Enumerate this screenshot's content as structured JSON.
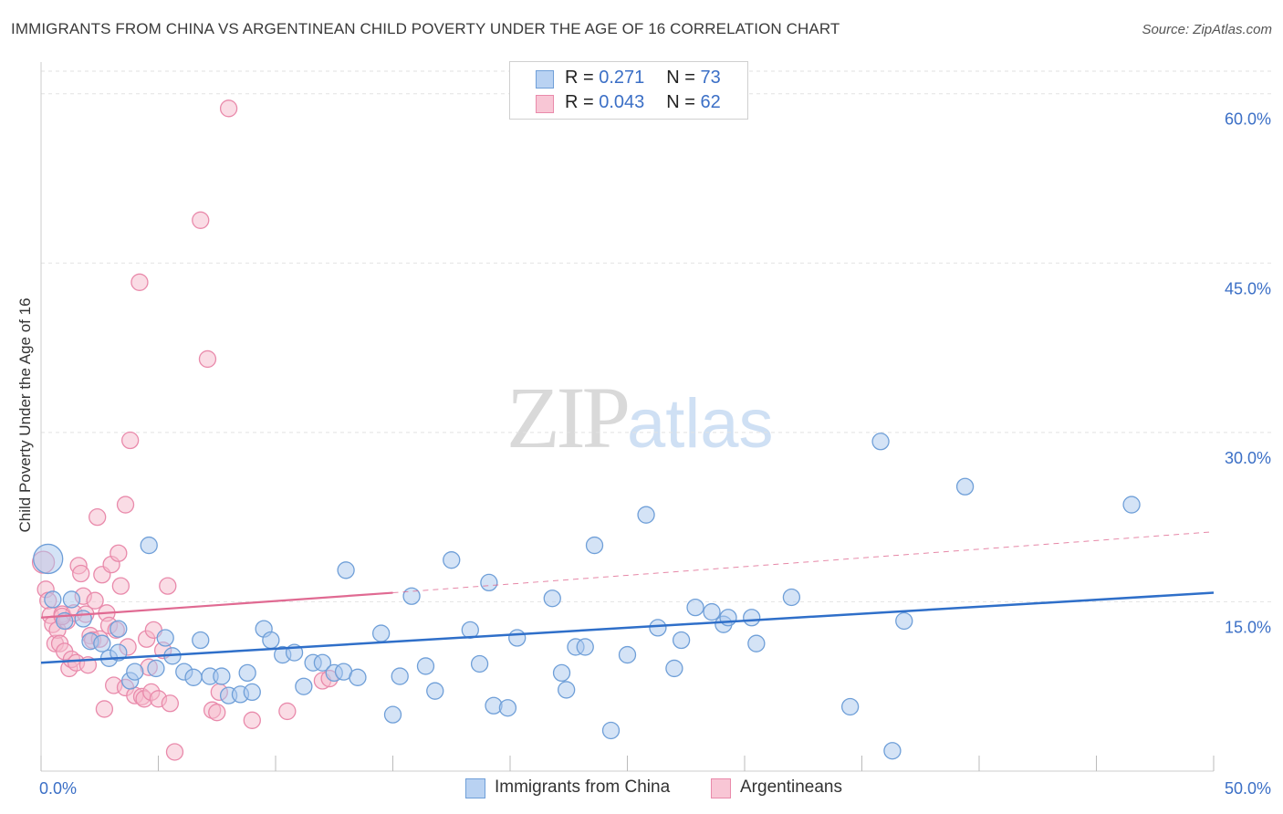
{
  "header": {
    "title": "IMMIGRANTS FROM CHINA VS ARGENTINEAN CHILD POVERTY UNDER THE AGE OF 16 CORRELATION CHART",
    "source": "Source: ZipAtlas.com"
  },
  "watermark": {
    "zip": "ZIP",
    "atlas": "atlas"
  },
  "legend": {
    "china": {
      "r_label": "R = ",
      "r_value": "0.271",
      "n_label": "N = ",
      "n_value": "73"
    },
    "argentinean": {
      "r_label": "R = ",
      "r_value": "0.043",
      "n_label": "N = ",
      "n_value": "62"
    }
  },
  "colors": {
    "china_fill": "#a9c8ee",
    "china_stroke": "#6f9fd8",
    "china_line": "#2f6fc9",
    "arg_fill": "#f6b9cc",
    "arg_stroke": "#e98aab",
    "arg_line": "#e06a92",
    "axis_text": "#3b6fc6",
    "grid": "#e2e2e2"
  },
  "chart_data": {
    "type": "scatter",
    "title": "IMMIGRANTS FROM CHINA VS ARGENTINEAN CHILD POVERTY UNDER THE AGE OF 16 CORRELATION CHART",
    "xlabel": "",
    "ylabel": "Child Poverty Under the Age of 16",
    "xlim": [
      0,
      50
    ],
    "ylim": [
      0,
      62
    ],
    "x_tick_labels": [
      "0.0%",
      "50.0%"
    ],
    "y_ticks": [
      15,
      30,
      45,
      60
    ],
    "y_tick_labels": [
      "15.0%",
      "30.0%",
      "45.0%",
      "60.0%"
    ],
    "grid": true,
    "legend_position": "top-center",
    "series": [
      {
        "name": "Immigrants from China",
        "trend": {
          "x": [
            0,
            50
          ],
          "y": [
            9.6,
            15.8
          ],
          "style": "solid"
        },
        "points": [
          [
            0.3,
            18.8
          ],
          [
            0.5,
            15.2
          ],
          [
            1.0,
            13.3
          ],
          [
            1.3,
            15.2
          ],
          [
            1.8,
            13.5
          ],
          [
            2.1,
            11.5
          ],
          [
            2.6,
            11.3
          ],
          [
            2.9,
            10.0
          ],
          [
            3.3,
            10.5
          ],
          [
            3.3,
            12.6
          ],
          [
            3.8,
            8.0
          ],
          [
            4.0,
            8.8
          ],
          [
            4.6,
            20.0
          ],
          [
            4.9,
            9.1
          ],
          [
            5.3,
            11.8
          ],
          [
            5.6,
            10.2
          ],
          [
            6.1,
            8.8
          ],
          [
            6.5,
            8.3
          ],
          [
            6.8,
            11.6
          ],
          [
            7.2,
            8.4
          ],
          [
            7.7,
            8.4
          ],
          [
            8.0,
            6.7
          ],
          [
            8.5,
            6.8
          ],
          [
            8.8,
            8.7
          ],
          [
            9.0,
            7.0
          ],
          [
            9.5,
            12.6
          ],
          [
            9.8,
            11.6
          ],
          [
            10.3,
            10.3
          ],
          [
            10.8,
            10.5
          ],
          [
            11.2,
            7.5
          ],
          [
            11.6,
            9.6
          ],
          [
            12.0,
            9.6
          ],
          [
            12.5,
            8.7
          ],
          [
            12.9,
            8.8
          ],
          [
            13.0,
            17.8
          ],
          [
            13.5,
            8.3
          ],
          [
            14.5,
            12.2
          ],
          [
            15.0,
            5.0
          ],
          [
            15.3,
            8.4
          ],
          [
            15.8,
            15.5
          ],
          [
            16.4,
            9.3
          ],
          [
            16.8,
            7.1
          ],
          [
            17.5,
            18.7
          ],
          [
            18.3,
            12.5
          ],
          [
            18.7,
            9.5
          ],
          [
            19.3,
            5.8
          ],
          [
            19.1,
            16.7
          ],
          [
            19.9,
            5.6
          ],
          [
            20.3,
            11.8
          ],
          [
            21.8,
            15.3
          ],
          [
            22.2,
            8.7
          ],
          [
            22.8,
            11.0
          ],
          [
            23.2,
            11.0
          ],
          [
            22.4,
            7.2
          ],
          [
            23.6,
            20.0
          ],
          [
            24.3,
            3.6
          ],
          [
            25.0,
            10.3
          ],
          [
            25.8,
            22.7
          ],
          [
            26.3,
            12.7
          ],
          [
            27.0,
            9.1
          ],
          [
            27.3,
            11.6
          ],
          [
            27.9,
            14.5
          ],
          [
            28.6,
            14.1
          ],
          [
            29.1,
            13.0
          ],
          [
            29.3,
            13.6
          ],
          [
            30.3,
            13.6
          ],
          [
            30.5,
            11.3
          ],
          [
            32.0,
            15.4
          ],
          [
            34.5,
            5.7
          ],
          [
            35.8,
            29.2
          ],
          [
            36.3,
            1.8
          ],
          [
            36.8,
            13.3
          ],
          [
            39.4,
            25.2
          ],
          [
            46.5,
            23.6
          ]
        ]
      },
      {
        "name": "Argentineans",
        "trend": {
          "x": [
            0,
            15
          ],
          "y": [
            13.6,
            15.8
          ],
          "style": "solid",
          "extension": {
            "x": [
              15,
              50
            ],
            "y": [
              15.8,
              21.2
            ],
            "style": "dashed"
          }
        },
        "points": [
          [
            0.1,
            18.5
          ],
          [
            0.2,
            16.1
          ],
          [
            0.3,
            15.1
          ],
          [
            0.4,
            13.8
          ],
          [
            0.5,
            13.0
          ],
          [
            0.6,
            11.3
          ],
          [
            0.7,
            12.5
          ],
          [
            0.8,
            11.3
          ],
          [
            0.9,
            13.9
          ],
          [
            1.0,
            10.6
          ],
          [
            1.1,
            13.3
          ],
          [
            1.2,
            9.1
          ],
          [
            1.3,
            9.9
          ],
          [
            1.4,
            14.0
          ],
          [
            1.5,
            9.6
          ],
          [
            1.6,
            18.2
          ],
          [
            1.7,
            17.5
          ],
          [
            1.8,
            15.5
          ],
          [
            1.9,
            13.9
          ],
          [
            2.0,
            9.4
          ],
          [
            2.1,
            12.0
          ],
          [
            2.2,
            11.6
          ],
          [
            2.3,
            15.1
          ],
          [
            2.4,
            22.5
          ],
          [
            2.5,
            11.7
          ],
          [
            2.6,
            17.4
          ],
          [
            2.7,
            5.5
          ],
          [
            2.8,
            14.0
          ],
          [
            2.9,
            12.9
          ],
          [
            3.0,
            18.3
          ],
          [
            3.1,
            7.6
          ],
          [
            3.2,
            12.5
          ],
          [
            3.3,
            19.3
          ],
          [
            3.4,
            16.4
          ],
          [
            3.6,
            7.4
          ],
          [
            3.7,
            11.0
          ],
          [
            3.6,
            23.6
          ],
          [
            3.8,
            29.3
          ],
          [
            4.0,
            6.7
          ],
          [
            4.2,
            43.3
          ],
          [
            4.3,
            6.6
          ],
          [
            4.4,
            6.4
          ],
          [
            4.5,
            11.7
          ],
          [
            4.6,
            9.2
          ],
          [
            4.7,
            7.0
          ],
          [
            4.8,
            12.5
          ],
          [
            5.0,
            6.4
          ],
          [
            5.2,
            10.7
          ],
          [
            5.4,
            16.4
          ],
          [
            5.5,
            6.0
          ],
          [
            5.7,
            1.7
          ],
          [
            6.8,
            48.8
          ],
          [
            7.1,
            36.5
          ],
          [
            7.3,
            5.4
          ],
          [
            7.5,
            5.2
          ],
          [
            7.6,
            7.0
          ],
          [
            8.0,
            58.7
          ],
          [
            9.0,
            4.5
          ],
          [
            10.5,
            5.3
          ],
          [
            12.0,
            8.0
          ],
          [
            12.3,
            8.2
          ],
          [
            0.9,
            13.7
          ]
        ]
      }
    ]
  },
  "bottom_legend": {
    "china": "Immigrants from China",
    "argentinean": "Argentineans"
  },
  "axes": {
    "ylabel": "Child Poverty Under the Age of 16",
    "x_min_label": "0.0%",
    "x_max_label": "50.0%"
  }
}
